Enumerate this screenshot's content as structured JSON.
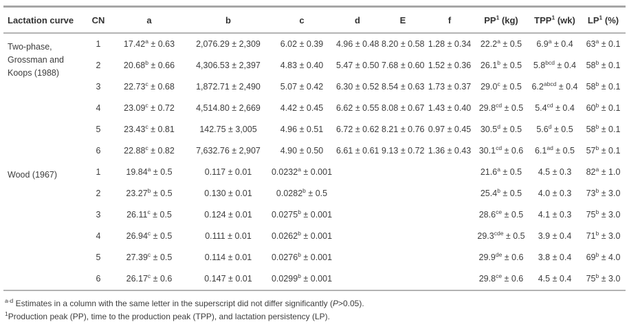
{
  "table": {
    "columns": [
      {
        "key": "lactation-curve",
        "label": "Lactation curve",
        "sup": "",
        "suffix": ""
      },
      {
        "key": "cn",
        "label": "CN",
        "sup": "",
        "suffix": ""
      },
      {
        "key": "a",
        "label": "a",
        "sup": "",
        "suffix": ""
      },
      {
        "key": "b",
        "label": "b",
        "sup": "",
        "suffix": ""
      },
      {
        "key": "c",
        "label": "c",
        "sup": "",
        "suffix": ""
      },
      {
        "key": "d",
        "label": "d",
        "sup": "",
        "suffix": ""
      },
      {
        "key": "e",
        "label": "E",
        "sup": "",
        "suffix": ""
      },
      {
        "key": "f",
        "label": "f",
        "sup": "",
        "suffix": ""
      },
      {
        "key": "pp",
        "label": "PP",
        "sup": "1",
        "suffix": "(kg)"
      },
      {
        "key": "tpp",
        "label": "TPP",
        "sup": "1",
        "suffix": "(wk)"
      },
      {
        "key": "lp",
        "label": "LP",
        "sup": "1",
        "suffix": "(%)"
      }
    ],
    "groups": [
      {
        "label_lines": [
          "Two-phase,",
          "Grossman and",
          "Koops (1988)"
        ],
        "rows": [
          {
            "cn": "1",
            "cells": [
              {
                "val": "17.42",
                "sup": "a",
                "err": "0.63"
              },
              {
                "val": "2,076.29",
                "sup": "",
                "err": "2,309"
              },
              {
                "val": "6.02",
                "sup": "",
                "err": "0.39"
              },
              {
                "val": "4.96",
                "sup": "",
                "err": "0.48"
              },
              {
                "val": "8.20",
                "sup": "",
                "err": "0.58"
              },
              {
                "val": "1.28",
                "sup": "",
                "err": "0.34"
              },
              {
                "val": "22.2",
                "sup": "a",
                "err": "0.5"
              },
              {
                "val": "6.9",
                "sup": "a",
                "err": "0.4"
              },
              {
                "val": "63",
                "sup": "a",
                "err": "0.1"
              }
            ]
          },
          {
            "cn": "2",
            "cells": [
              {
                "val": "20.68",
                "sup": "b",
                "err": "0.66"
              },
              {
                "val": "4,306.53",
                "sup": "",
                "err": "2,397"
              },
              {
                "val": "4.83",
                "sup": "",
                "err": "0.40"
              },
              {
                "val": "5.47",
                "sup": "",
                "err": "0.50"
              },
              {
                "val": "7.68",
                "sup": "",
                "err": "0.60"
              },
              {
                "val": "1.52",
                "sup": "",
                "err": "0.36"
              },
              {
                "val": "26.1",
                "sup": "b",
                "err": "0.5"
              },
              {
                "val": "5.8",
                "sup": "bcd",
                "err": "0.4"
              },
              {
                "val": "58",
                "sup": "b",
                "err": "0.1"
              }
            ]
          },
          {
            "cn": "3",
            "cells": [
              {
                "val": "22.73",
                "sup": "c",
                "err": "0.68"
              },
              {
                "val": "1,872.71",
                "sup": "",
                "err": "2,490"
              },
              {
                "val": "5.07",
                "sup": "",
                "err": "0.42"
              },
              {
                "val": "6.30",
                "sup": "",
                "err": "0.52"
              },
              {
                "val": "8.54",
                "sup": "",
                "err": "0.63"
              },
              {
                "val": "1.73",
                "sup": "",
                "err": "0.37"
              },
              {
                "val": "29.0",
                "sup": "c",
                "err": "0.5"
              },
              {
                "val": "6.2",
                "sup": "abcd",
                "err": "0.4"
              },
              {
                "val": "58",
                "sup": "b",
                "err": "0.1"
              }
            ]
          },
          {
            "cn": "4",
            "cells": [
              {
                "val": "23.09",
                "sup": "c",
                "err": "0.72"
              },
              {
                "val": "4,514.80",
                "sup": "",
                "err": "2,669"
              },
              {
                "val": "4.42",
                "sup": "",
                "err": "0.45"
              },
              {
                "val": "6.62",
                "sup": "",
                "err": "0.55"
              },
              {
                "val": "8.08",
                "sup": "",
                "err": "0.67"
              },
              {
                "val": "1.43",
                "sup": "",
                "err": "0.40"
              },
              {
                "val": "29.8",
                "sup": "cd",
                "err": "0.5"
              },
              {
                "val": "5.4",
                "sup": "cd",
                "err": "0.4"
              },
              {
                "val": "60",
                "sup": "b",
                "err": "0.1"
              }
            ]
          },
          {
            "cn": "5",
            "cells": [
              {
                "val": "23.43",
                "sup": "c",
                "err": "0.81"
              },
              {
                "val": "142.75",
                "sup": "",
                "err": "3,005"
              },
              {
                "val": "4.96",
                "sup": "",
                "err": "0.51"
              },
              {
                "val": "6.72",
                "sup": "",
                "err": "0.62"
              },
              {
                "val": "8.21",
                "sup": "",
                "err": "0.76"
              },
              {
                "val": "0.97",
                "sup": "",
                "err": "0.45"
              },
              {
                "val": "30.5",
                "sup": "d",
                "err": "0.5"
              },
              {
                "val": "5.6",
                "sup": "d",
                "err": "0.5"
              },
              {
                "val": "58",
                "sup": "b",
                "err": "0.1"
              }
            ]
          },
          {
            "cn": "6",
            "cells": [
              {
                "val": "22.88",
                "sup": "c",
                "err": "0.82"
              },
              {
                "val": "7,632.76",
                "sup": "",
                "err": "2,907"
              },
              {
                "val": "4.90",
                "sup": "",
                "err": "0.50"
              },
              {
                "val": "6.61",
                "sup": "",
                "err": "0.61"
              },
              {
                "val": "9.13",
                "sup": "",
                "err": "0.72"
              },
              {
                "val": "1.36",
                "sup": "",
                "err": "0.43"
              },
              {
                "val": "30.1",
                "sup": "cd",
                "err": "0.6"
              },
              {
                "val": "6.1",
                "sup": "ad",
                "err": "0.5"
              },
              {
                "val": "57",
                "sup": "b",
                "err": "0.1"
              }
            ]
          }
        ]
      },
      {
        "label_lines": [
          "Wood (1967)"
        ],
        "rows": [
          {
            "cn": "1",
            "cells": [
              {
                "val": "19.84",
                "sup": "a",
                "err": "0.5"
              },
              {
                "val": "0.117",
                "sup": "",
                "err": "0.01"
              },
              {
                "val": "0.0232",
                "sup": "a",
                "err": "0.001"
              },
              null,
              null,
              null,
              {
                "val": "21.6",
                "sup": "a",
                "err": "0.5"
              },
              {
                "val": "4.5",
                "sup": "",
                "err": "0.3"
              },
              {
                "val": "82",
                "sup": "a",
                "err": "1.0"
              }
            ]
          },
          {
            "cn": "2",
            "cells": [
              {
                "val": "23.27",
                "sup": "b",
                "err": "0.5"
              },
              {
                "val": "0.130",
                "sup": "",
                "err": "0.01"
              },
              {
                "val": "0.0282",
                "sup": "b",
                "err": "0.5"
              },
              null,
              null,
              null,
              {
                "val": "25.4",
                "sup": "b",
                "err": "0.5"
              },
              {
                "val": "4.0",
                "sup": "",
                "err": "0.3"
              },
              {
                "val": "73",
                "sup": "b",
                "err": "3.0"
              }
            ]
          },
          {
            "cn": "3",
            "cells": [
              {
                "val": "26.11",
                "sup": "c",
                "err": "0.5"
              },
              {
                "val": "0.124",
                "sup": "",
                "err": "0.01"
              },
              {
                "val": "0.0275",
                "sup": "b",
                "err": "0.001"
              },
              null,
              null,
              null,
              {
                "val": "28.6",
                "sup": "ce",
                "err": "0.5"
              },
              {
                "val": "4.1",
                "sup": "",
                "err": "0.3"
              },
              {
                "val": "75",
                "sup": "b",
                "err": "3.0"
              }
            ]
          },
          {
            "cn": "4",
            "cells": [
              {
                "val": "26.94",
                "sup": "c",
                "err": "0.5"
              },
              {
                "val": "0.111",
                "sup": "",
                "err": "0.01"
              },
              {
                "val": "0.0262",
                "sup": "b",
                "err": "0.001"
              },
              null,
              null,
              null,
              {
                "val": "29.3",
                "sup": "cde",
                "err": "0.5"
              },
              {
                "val": "3.9",
                "sup": "",
                "err": "0.4"
              },
              {
                "val": "71",
                "sup": "b",
                "err": "3.0"
              }
            ]
          },
          {
            "cn": "5",
            "cells": [
              {
                "val": "27.39",
                "sup": "c",
                "err": "0.5"
              },
              {
                "val": "0.114",
                "sup": "",
                "err": "0.01"
              },
              {
                "val": "0.0276",
                "sup": "b",
                "err": "0.001"
              },
              null,
              null,
              null,
              {
                "val": "29.9",
                "sup": "de",
                "err": "0.6"
              },
              {
                "val": "3.8",
                "sup": "",
                "err": "0.4"
              },
              {
                "val": "69",
                "sup": "b",
                "err": "4.0"
              }
            ]
          },
          {
            "cn": "6",
            "cells": [
              {
                "val": "26.17",
                "sup": "c",
                "err": "0.6"
              },
              {
                "val": "0.147",
                "sup": "",
                "err": "0.01"
              },
              {
                "val": "0.0299",
                "sup": "b",
                "err": "0.001"
              },
              null,
              null,
              null,
              {
                "val": "29.8",
                "sup": "ce",
                "err": "0.6"
              },
              {
                "val": "4.5",
                "sup": "",
                "err": "0.4"
              },
              {
                "val": "75",
                "sup": "b",
                "err": "3.0"
              }
            ]
          }
        ]
      }
    ]
  },
  "footnotes": [
    {
      "sup": "a-d",
      "segments": [
        {
          "text": " Estimates in a column with the same letter in the superscript did not differ significantly (",
          "italic": false
        },
        {
          "text": "P",
          "italic": true
        },
        {
          "text": ">0.05).",
          "italic": false
        }
      ]
    },
    {
      "sup": "1",
      "segments": [
        {
          "text": "Production peak (PP), time to the production peak (TPP), and lactation persistency (LP).",
          "italic": false
        }
      ]
    }
  ],
  "colors": {
    "rule_top": "#a6a6a6",
    "rule_inner": "#b3b3b3",
    "text": "#3c3c3c",
    "background": "#ffffff"
  }
}
